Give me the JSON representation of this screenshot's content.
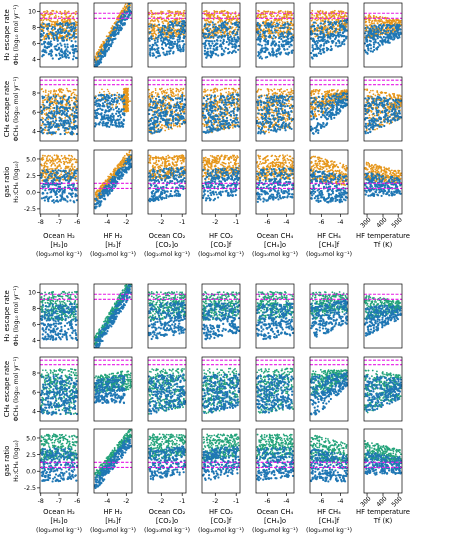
{
  "figure": {
    "colors": {
      "blue": "#1f77b4",
      "orange": "#e6961a",
      "green": "#23a37a",
      "magenta": "#e619e6",
      "axis": "#000000"
    },
    "ylabels": [
      [
        "H₂ escape rate",
        "ΦH₂ (log₁₀ mol yr⁻¹)"
      ],
      [
        "CH₄ escape rate",
        "ΦCH₄ (log₁₀ mol yr⁻¹)"
      ],
      [
        "gas ratio",
        "H₂:CH₄ (log₁₀)"
      ]
    ],
    "xlabels": [
      [
        "Ocean H₂",
        "[H₂]o",
        "(log₁₀mol kg⁻¹)"
      ],
      [
        "HF H₂",
        "[H₂]f",
        "(log₁₀mol kg⁻¹)"
      ],
      [
        "Ocean CO₂",
        "[CO₂]o",
        "(log₁₀mol kg⁻¹)"
      ],
      [
        "HF CO₂",
        "[CO₂]f",
        "(log₁₀mol kg⁻¹)"
      ],
      [
        "Ocean CH₄",
        "[CH₄]o",
        "(log₁₀mol kg⁻¹)"
      ],
      [
        "HF CH₄",
        "[CH₄]f",
        "(log₁₀mol kg⁻¹)"
      ],
      [
        "HF temperature",
        "Tf (K)",
        ""
      ]
    ],
    "xticks": [
      [
        "-8",
        "-7",
        "-6"
      ],
      [
        "-4",
        "-2"
      ],
      [
        "-2",
        "-1"
      ],
      [
        "-2",
        "-1"
      ],
      [
        "-6",
        "-4"
      ],
      [
        "-6",
        "-4"
      ],
      [
        "300",
        "400",
        "500"
      ]
    ],
    "yticks": [
      [
        "4",
        "6",
        "8",
        "10"
      ],
      [
        "4",
        "6",
        "8"
      ],
      [
        "-2.5",
        "0.0",
        "2.5",
        "5.0"
      ]
    ]
  },
  "chart_data": [
    {
      "type": "scatter",
      "panel": "top",
      "series": [
        {
          "name": "",
          "color": "#1f77b4"
        },
        {
          "name": "",
          "color": "#e6961a"
        }
      ],
      "rows": [
        {
          "ylim": [
            3,
            11
          ],
          "magenta_lines": [
            9.5,
            9.9
          ]
        },
        {
          "ylim": [
            3,
            9.5
          ],
          "magenta_lines": [
            8.6,
            9.0
          ]
        },
        {
          "ylim": [
            -3.5,
            6
          ],
          "magenta_lines": [
            0.2,
            0.9
          ]
        }
      ],
      "columns": [
        {
          "xlim": [
            -8,
            -6
          ]
        },
        {
          "xlim": [
            -5,
            -1
          ]
        },
        {
          "xlim": [
            -2.5,
            -0.8
          ]
        },
        {
          "xlim": [
            -2.5,
            -0.8
          ]
        },
        {
          "xlim": [
            -7,
            -3
          ]
        },
        {
          "xlim": [
            -7,
            -3
          ]
        },
        {
          "xlim": [
            280,
            520
          ]
        }
      ]
    },
    {
      "type": "scatter",
      "panel": "bottom",
      "series": [
        {
          "name": "",
          "color": "#1f77b4"
        },
        {
          "name": "",
          "color": "#23a37a"
        }
      ],
      "rows": [
        {
          "ylim": [
            3,
            11
          ],
          "magenta_lines": [
            9.5,
            9.9
          ]
        },
        {
          "ylim": [
            3,
            9.5
          ],
          "magenta_lines": [
            8.6,
            9.0
          ]
        },
        {
          "ylim": [
            -3.5,
            6
          ],
          "magenta_lines": [
            0.2,
            0.9
          ]
        }
      ],
      "columns": [
        {
          "xlim": [
            -8,
            -6
          ]
        },
        {
          "xlim": [
            -5,
            -1
          ]
        },
        {
          "xlim": [
            -2.5,
            -0.8
          ]
        },
        {
          "xlim": [
            -2.5,
            -0.8
          ]
        },
        {
          "xlim": [
            -7,
            -3
          ]
        },
        {
          "xlim": [
            -7,
            -3
          ]
        },
        {
          "xlim": [
            280,
            520
          ]
        }
      ]
    }
  ]
}
